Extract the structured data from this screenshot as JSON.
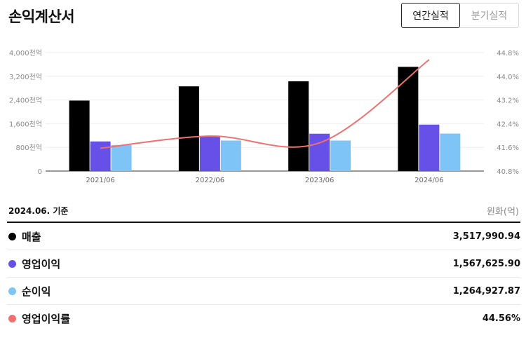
{
  "header": {
    "title": "손익계산서",
    "tab_annual": "연간실적",
    "tab_quarterly": "분기실적"
  },
  "chart_data": {
    "type": "bar",
    "categories": [
      "2021/06",
      "2022/06",
      "2023/06",
      "2024/06"
    ],
    "y_left": {
      "ticks": [
        0,
        800,
        1600,
        2400,
        3200,
        4000
      ],
      "tick_labels": [
        "0",
        "800천억",
        "1,600천억",
        "2,400천억",
        "3,200천억",
        "4,000천억"
      ],
      "ylim": [
        0,
        4000
      ]
    },
    "y_right": {
      "ticks": [
        40.8,
        41.6,
        42.4,
        43.2,
        44.0,
        44.8
      ],
      "tick_labels": [
        "40.8%",
        "41.6%",
        "42.4%",
        "43.2%",
        "44.0%",
        "44.8%"
      ],
      "ylim": [
        40.8,
        44.8
      ]
    },
    "series": [
      {
        "name": "매출",
        "type": "bar",
        "axis": "left",
        "color": "#000000",
        "values": [
          2380,
          2860,
          3030,
          3518
        ]
      },
      {
        "name": "영업이익",
        "type": "bar",
        "axis": "left",
        "color": "#6650e8",
        "values": [
          1000,
          1160,
          1260,
          1568
        ]
      },
      {
        "name": "순이익",
        "type": "bar",
        "axis": "left",
        "color": "#7fc4f6",
        "values": [
          880,
          1030,
          1030,
          1265
        ]
      },
      {
        "name": "영업이익률",
        "type": "line",
        "axis": "right",
        "color": "#f07070",
        "values": [
          41.57,
          41.98,
          41.75,
          44.56
        ]
      }
    ],
    "grid": true
  },
  "table": {
    "basis": "2024.06. 기준",
    "unit": "원화(억)",
    "rows": [
      {
        "label": "매출",
        "value": "3,517,990.94",
        "color": "#000000"
      },
      {
        "label": "영업이익",
        "value": "1,567,625.90",
        "color": "#6650e8"
      },
      {
        "label": "순이익",
        "value": "1,264,927.87",
        "color": "#7fc4f6"
      },
      {
        "label": "영업이익률",
        "value": "44.56%",
        "color": "#f07070"
      }
    ]
  }
}
